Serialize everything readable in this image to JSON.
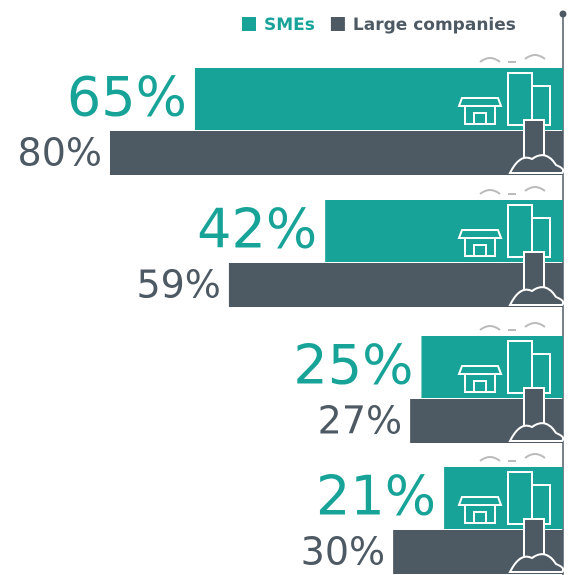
{
  "chart_data": {
    "type": "hbar",
    "series": [
      {
        "name": "SMEs",
        "color": "#17a398",
        "values": [
          65,
          42,
          25,
          21
        ],
        "value_labels": [
          "65%",
          "42%",
          "25%",
          "21%"
        ]
      },
      {
        "name": "Large companies",
        "color": "#4e5a63",
        "values": [
          80,
          59,
          27,
          30
        ],
        "value_labels": [
          "80%",
          "59%",
          "27%",
          "30%"
        ]
      }
    ],
    "xlim": [
      0,
      100
    ]
  }
}
